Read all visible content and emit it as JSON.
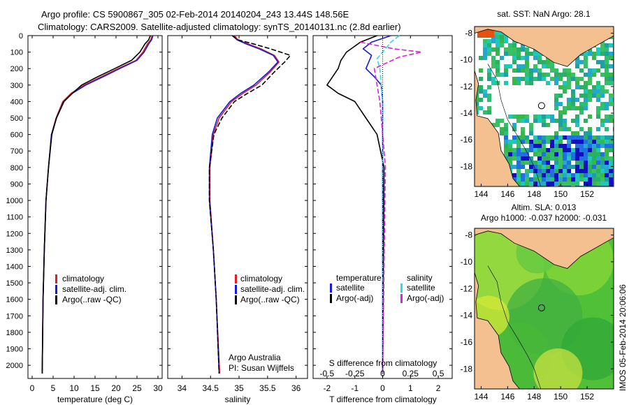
{
  "header": {
    "line1": "Argo profile: CS 5900867_305 02-Feb-2014 20140204_243 13.44S 148.56E",
    "line2": "Climatology: CARS2009. Satellite-adjusted climatology: synTS_20140131.nc (2.8d earlier)"
  },
  "credit": {
    "org": "Argo Australia",
    "pi": "PI: Susan Wijffels",
    "stamp": "IMOS 05-Feb-2014 20:06:06"
  },
  "colors": {
    "climatology": "#e02020",
    "satellite": "#1a1adc",
    "argo": "#000000",
    "salinity_satellite": "#30d8e8",
    "salinity_argo": "#e020e0",
    "land": "#f4c090"
  },
  "chart_data": [
    {
      "type": "line",
      "id": "temperature",
      "xlabel": "temperature (deg C)",
      "xlim": [
        -1,
        31
      ],
      "xticks": [
        0,
        5,
        10,
        15,
        20,
        25,
        30
      ],
      "ylim": [
        0,
        2080
      ],
      "yticks": [
        0,
        100,
        200,
        300,
        400,
        500,
        600,
        700,
        800,
        900,
        1000,
        1100,
        1200,
        1300,
        1400,
        1500,
        1600,
        1700,
        1800,
        1900,
        2000
      ],
      "legend": [
        "climatology",
        "satellite-adj. clim.",
        "Argo(..raw -QC)"
      ],
      "series": [
        {
          "name": "climatology",
          "x": [
            28.6,
            28.3,
            27.5,
            26.4,
            24.8,
            20.5,
            16.5,
            12.4,
            9.3,
            7.3,
            5.7,
            4.6,
            3.9,
            3.3,
            2.9,
            2.6,
            2.4
          ],
          "y": [
            0,
            25,
            50,
            100,
            150,
            200,
            250,
            300,
            350,
            400,
            500,
            600,
            800,
            1000,
            1300,
            1600,
            2050
          ]
        },
        {
          "name": "satellite-adj. clim.",
          "x": [
            28.8,
            28.5,
            27.8,
            26.7,
            25.0,
            20.9,
            16.9,
            12.8,
            9.6,
            7.5,
            5.8,
            4.6,
            3.9,
            3.3,
            2.9,
            2.6,
            2.4
          ],
          "y": [
            0,
            25,
            50,
            100,
            150,
            200,
            250,
            300,
            350,
            400,
            500,
            600,
            800,
            1000,
            1300,
            1600,
            2050
          ]
        },
        {
          "name": "Argo(..raw -QC)",
          "x": [
            28.2,
            27.8,
            26.9,
            25.7,
            23.7,
            19.7,
            15.6,
            11.8,
            9.6,
            7.6,
            5.8,
            4.7,
            3.9,
            3.3,
            2.9,
            2.6,
            2.4
          ],
          "y": [
            0,
            25,
            50,
            100,
            150,
            200,
            250,
            300,
            350,
            400,
            500,
            600,
            800,
            1000,
            1300,
            1600,
            2050
          ]
        }
      ]
    },
    {
      "type": "line",
      "id": "salinity",
      "xlabel": "salinity",
      "xlim": [
        33.75,
        36.2
      ],
      "xticks": [
        34,
        34.5,
        35,
        35.5,
        36
      ],
      "ylim": [
        0,
        2080
      ],
      "legend": [
        "climatology",
        "satellite-adj. clim.",
        "Argo(..raw -QC)"
      ],
      "series": [
        {
          "name": "climatology",
          "x": [
            34.92,
            34.98,
            35.15,
            35.38,
            35.62,
            35.7,
            35.55,
            35.3,
            35.07,
            34.87,
            34.65,
            34.55,
            34.49,
            34.49,
            34.55,
            34.6,
            34.66
          ],
          "y": [
            0,
            25,
            50,
            80,
            120,
            160,
            220,
            300,
            350,
            400,
            500,
            600,
            800,
            1000,
            1300,
            1600,
            2050
          ]
        },
        {
          "name": "satellite-adj. clim.",
          "x": [
            34.9,
            34.96,
            35.12,
            35.35,
            35.6,
            35.68,
            35.52,
            35.26,
            35.03,
            34.84,
            34.62,
            34.53,
            34.48,
            34.48,
            34.55,
            34.6,
            34.65
          ],
          "y": [
            0,
            25,
            50,
            80,
            120,
            160,
            220,
            300,
            350,
            400,
            500,
            600,
            800,
            1000,
            1300,
            1600,
            2050
          ]
        },
        {
          "name": "Argo(..raw -QC)",
          "x": [
            34.88,
            34.97,
            35.25,
            35.55,
            35.9,
            35.8,
            35.62,
            35.4,
            35.15,
            34.92,
            34.7,
            34.56,
            34.48,
            34.48,
            34.55,
            34.6,
            34.65
          ],
          "y": [
            0,
            25,
            50,
            80,
            120,
            160,
            220,
            300,
            350,
            400,
            500,
            600,
            800,
            1000,
            1300,
            1600,
            2050
          ]
        }
      ]
    },
    {
      "type": "line",
      "id": "difference",
      "xlabel": "T difference from climatology",
      "xlabel_top": "S difference from climatology",
      "xlim": [
        -2.5,
        2.5
      ],
      "xticks": [
        -2,
        -1,
        0,
        1,
        2
      ],
      "s_ticks": [
        "-0.5",
        "-0.25",
        "0",
        "0.25",
        "0.5"
      ],
      "ylim": [
        0,
        2080
      ],
      "legend_t_title": "temperature",
      "legend_s_title": "salinity",
      "legend": [
        "satellite",
        "Argo(-adj)",
        "satellite",
        "Argo(-adj)"
      ],
      "series": [
        {
          "name": "satellite",
          "x": [
            0.3,
            -0.4,
            -0.7,
            -0.4,
            -0.5,
            -0.6,
            -0.3,
            -0.05,
            0,
            0,
            0,
            0
          ],
          "y": [
            0,
            40,
            80,
            120,
            160,
            200,
            250,
            300,
            400,
            600,
            1000,
            2050
          ]
        },
        {
          "name": "Argo(-adj)",
          "x": [
            -0.2,
            -0.8,
            -1.3,
            -1.5,
            -1.6,
            -2.0,
            -1.6,
            -1.0,
            -0.6,
            -0.2,
            0.05,
            0
          ],
          "y": [
            0,
            40,
            100,
            150,
            200,
            300,
            350,
            400,
            500,
            600,
            800,
            2050
          ]
        },
        {
          "name": "satellite",
          "x": [
            0.6,
            0.3,
            0.1,
            -0.2,
            -0.1,
            0,
            0,
            0
          ],
          "y": [
            0,
            40,
            80,
            140,
            200,
            400,
            800,
            2050
          ]
        },
        {
          "name": "Argo(-adj)",
          "x": [
            -0.8,
            0.4,
            1.4,
            0.6,
            -0.3,
            -0.1,
            0.1,
            0
          ],
          "y": [
            40,
            80,
            100,
            130,
            200,
            400,
            800,
            2050
          ]
        }
      ]
    },
    {
      "type": "heatmap",
      "id": "sst-map",
      "title": "sat. SST: NaN Argo: 28.1",
      "xlim": [
        143.5,
        154
      ],
      "xticks": [
        144,
        146,
        148,
        150,
        152
      ],
      "ylim": [
        -19.5,
        -7.5
      ],
      "yticks": [
        -8,
        -10,
        -12,
        -14,
        -16,
        -18
      ],
      "argo_position": {
        "lon": 148.56,
        "lat": -13.44
      }
    },
    {
      "type": "heatmap",
      "id": "sla-map",
      "title": "Altim. SLA: 0.013",
      "subtitle": "Argo h1000: -0.037 h2000: -0.031",
      "xlim": [
        143.5,
        154
      ],
      "xticks": [
        144,
        146,
        148,
        150,
        152
      ],
      "ylim": [
        -19.5,
        -7.5
      ],
      "yticks": [
        -8,
        -10,
        -12,
        -14,
        -16,
        -18
      ],
      "argo_position": {
        "lon": 148.56,
        "lat": -13.44
      }
    }
  ]
}
